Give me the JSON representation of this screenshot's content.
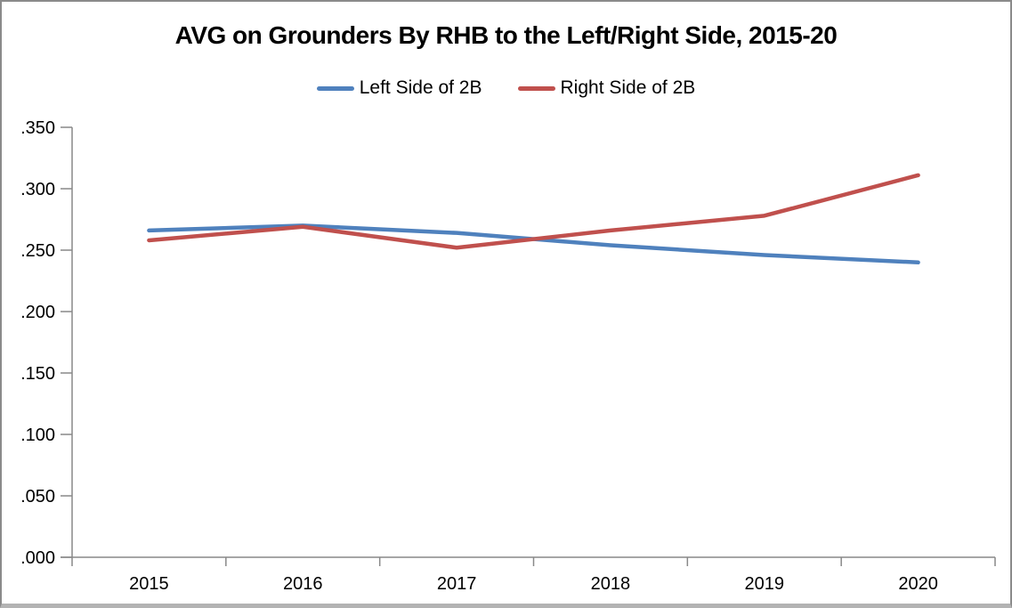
{
  "window": {
    "border_color": "#8a8a8a",
    "background": "#ffffff"
  },
  "chart_data": {
    "type": "line",
    "title": "AVG on Grounders By RHB to the Left/Right Side, 2015-20",
    "categories": [
      "2015",
      "2016",
      "2017",
      "2018",
      "2019",
      "2020"
    ],
    "series": [
      {
        "name": "Left Side of 2B",
        "color": "#4F81BD",
        "values": [
          0.266,
          0.27,
          0.264,
          0.254,
          0.246,
          0.24
        ]
      },
      {
        "name": "Right Side of 2B",
        "color": "#C0504D",
        "values": [
          0.258,
          0.269,
          0.252,
          0.266,
          0.278,
          0.311
        ]
      }
    ],
    "ylim": [
      0,
      0.35
    ],
    "ytick_interval": 0.05,
    "ytick_labels": [
      ".000",
      ".050",
      ".100",
      ".150",
      ".200",
      ".250",
      ".300",
      ".350"
    ],
    "xlabel": "",
    "ylabel": "",
    "grid": false,
    "legend_position": "top",
    "axis_color": "#898989",
    "label_color": "#000000"
  }
}
